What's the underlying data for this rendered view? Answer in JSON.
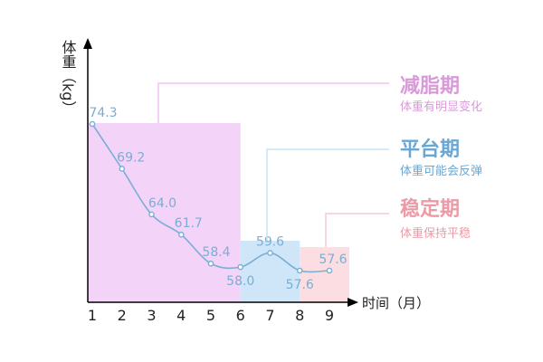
{
  "chart_data": {
    "type": "line",
    "ylabel": "体重（kg）",
    "xlabel": "时间（月）",
    "x": [
      1,
      2,
      3,
      4,
      5,
      6,
      7,
      8,
      9
    ],
    "tick_labels": [
      "1",
      "2",
      "3",
      "4",
      "5",
      "6",
      "7",
      "8",
      "9"
    ],
    "values": [
      74.3,
      69.2,
      64.0,
      61.7,
      58.4,
      58.0,
      59.6,
      57.6,
      57.6
    ],
    "data_labels": [
      "74.3",
      "69.2",
      "64.0",
      "61.7",
      "58.4",
      "58.0",
      "59.6",
      "57.6",
      "57.6"
    ],
    "line_color": "#7aaed3",
    "phases": [
      {
        "title": "减脂期",
        "subtitle": "体重有明显变化",
        "from": 1,
        "to": 6,
        "fill": "#f4d3f9",
        "line": "#f2c2f5",
        "text": "#d99ad8"
      },
      {
        "title": "平台期",
        "subtitle": "体重可能会反弹",
        "from": 6,
        "to": 8,
        "fill": "#cfe6f8",
        "line": "#c5e3f3",
        "text": "#6aa7d2"
      },
      {
        "title": "稳定期",
        "subtitle": "体重保持平稳",
        "from": 8,
        "to": 9.7,
        "fill": "#fbdde2",
        "line": "#f7c9d2",
        "text": "#eb9aa6"
      }
    ]
  }
}
